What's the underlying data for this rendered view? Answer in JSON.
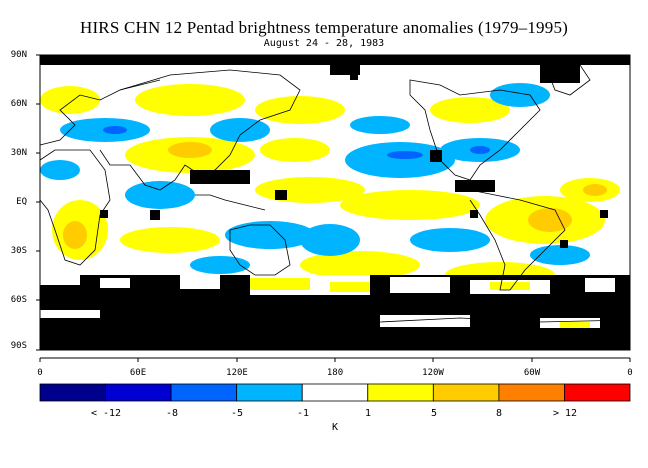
{
  "title": "HIRS CHN 12 Pentad brightness temperature anomalies (1979–1995)",
  "subtitle": "August 24 - 28, 1983",
  "lat_labels": [
    "90N",
    "60N",
    "30N",
    "EQ",
    "30S",
    "60S",
    "90S"
  ],
  "lon_labels": [
    "0",
    "60E",
    "120E",
    "180",
    "120W",
    "60W",
    "0"
  ],
  "colorbar": {
    "colors": [
      "#00008c",
      "#0000d2",
      "#0064ff",
      "#00b4ff",
      "#ffffff",
      "#ffff00",
      "#ffcc00",
      "#ff8000",
      "#ff0000"
    ],
    "labels": [
      "< -12",
      "-8",
      "-5",
      "-1",
      "1",
      "5",
      "8",
      "> 12"
    ],
    "unit": "K"
  },
  "colors": {
    "missing": "#000000",
    "coastline": "#000000"
  }
}
